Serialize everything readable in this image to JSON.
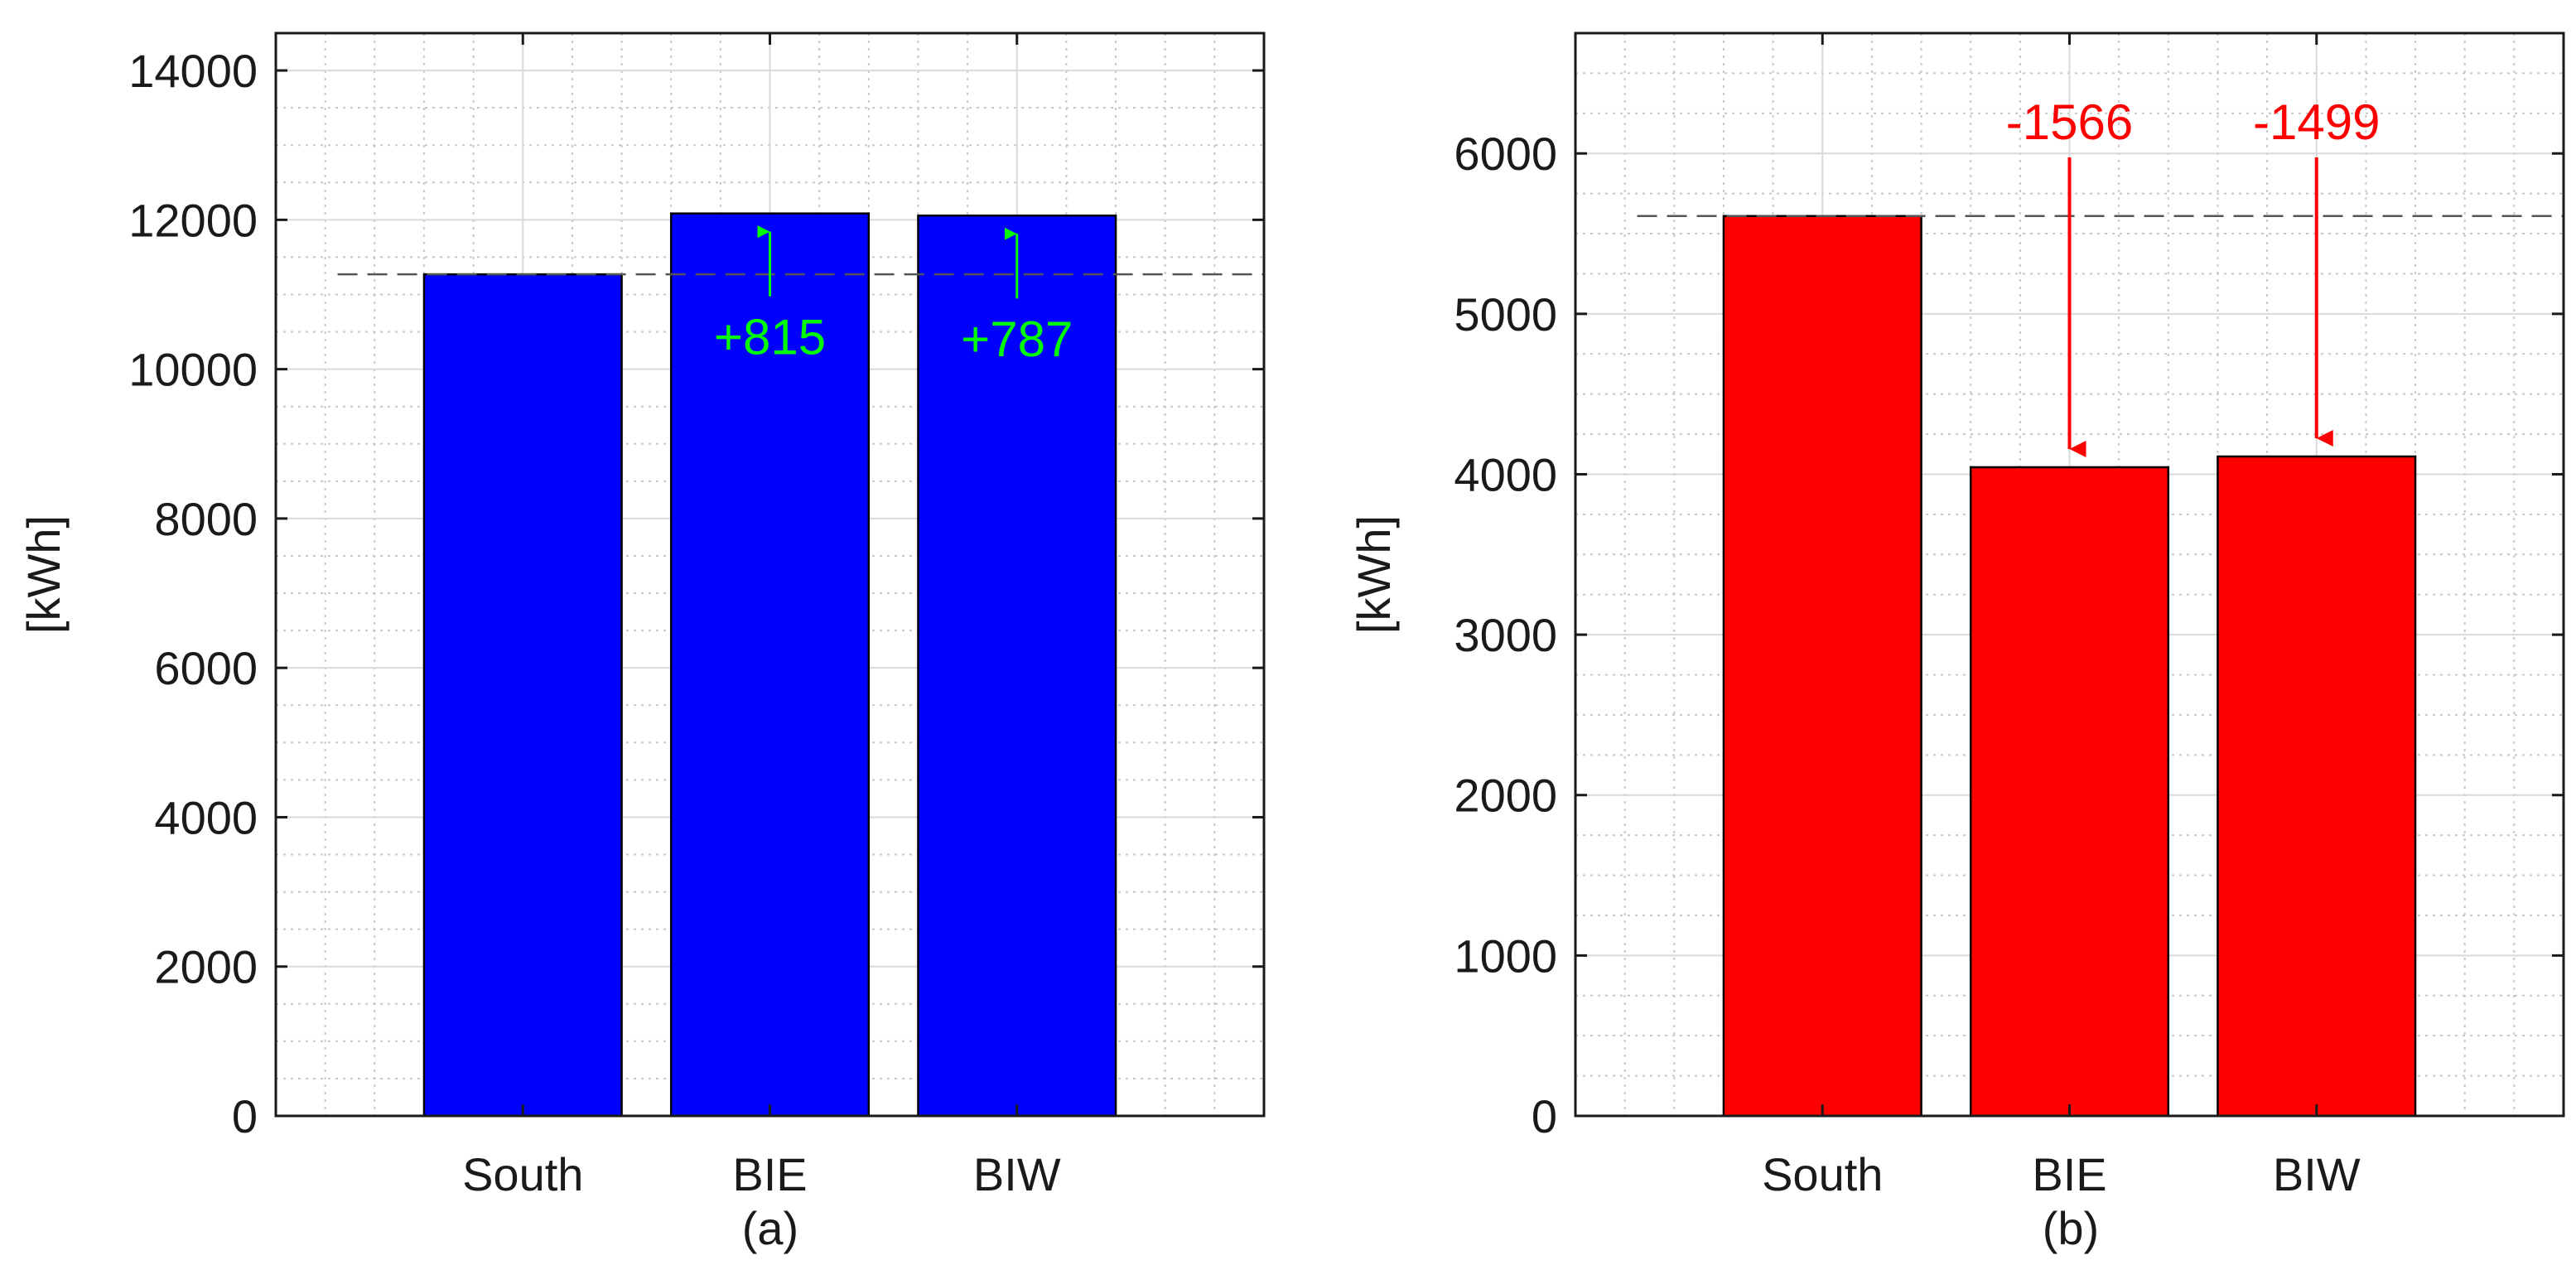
{
  "chart_data": [
    {
      "type": "bar",
      "categories": [
        "South",
        "BIE",
        "BIW"
      ],
      "values": [
        11270,
        12085,
        12057
      ],
      "bar_color": "#0000ff",
      "ylabel": "[kWh]",
      "panel_label": "(a)",
      "ylim": [
        0,
        14500
      ],
      "yticks": [
        0,
        2000,
        4000,
        6000,
        8000,
        10000,
        12000,
        14000
      ],
      "grid": true,
      "minor_grid": true,
      "reference_line": 11270,
      "annotations": [
        {
          "category": "BIE",
          "text": "+815",
          "color": "#00ff00",
          "direction": "up"
        },
        {
          "category": "BIW",
          "text": "+787",
          "color": "#00ff00",
          "direction": "up"
        }
      ]
    },
    {
      "type": "bar",
      "categories": [
        "South",
        "BIE",
        "BIW"
      ],
      "values": [
        5610,
        4044,
        4111
      ],
      "bar_color": "#ff0000",
      "ylabel": "[kWh]",
      "panel_label": "(b)",
      "ylim": [
        0,
        6750
      ],
      "yticks": [
        0,
        1000,
        2000,
        3000,
        4000,
        5000,
        6000
      ],
      "grid": true,
      "minor_grid": true,
      "reference_line": 5610,
      "annotations": [
        {
          "category": "BIE",
          "text": "-1566",
          "color": "#ff0000",
          "direction": "down"
        },
        {
          "category": "BIW",
          "text": "-1499",
          "color": "#ff0000",
          "direction": "down"
        }
      ]
    }
  ]
}
